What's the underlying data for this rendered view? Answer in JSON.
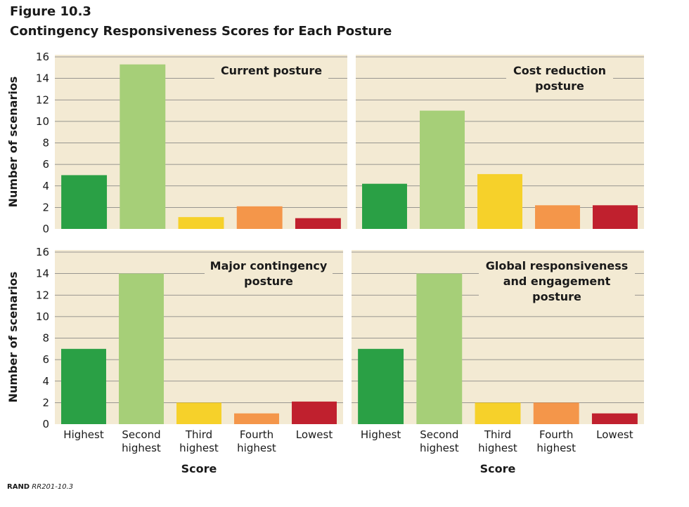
{
  "figure": {
    "label": "Figure 10.3",
    "title": "Contingency Responsiveness Scores for Each Posture",
    "source_org": "RAND",
    "source_id": "RR201-10.3"
  },
  "colors": {
    "panel_bg": "#f3ead3",
    "gridline": "#7a7a7a",
    "Highest": "#2aa045",
    "Second highest": "#a6cf78",
    "Third highest": "#f6d12a",
    "Fourth highest": "#f4964a",
    "Lowest": "#c0202e"
  },
  "chart_data": [
    {
      "type": "bar",
      "title_lines": [
        "Current posture"
      ],
      "categories": [
        "Highest",
        "Second highest",
        "Third highest",
        "Fourth highest",
        "Lowest"
      ],
      "values": [
        5,
        15.3,
        1.1,
        2.1,
        1
      ],
      "ylabel": "Number of scenarios",
      "xlabel": "",
      "ylim": [
        0,
        16
      ],
      "yticks": [
        0,
        2,
        4,
        6,
        8,
        10,
        12,
        14,
        16
      ],
      "grid": true
    },
    {
      "type": "bar",
      "title_lines": [
        "Cost reduction",
        "posture"
      ],
      "categories": [
        "Highest",
        "Second highest",
        "Third highest",
        "Fourth highest",
        "Lowest"
      ],
      "values": [
        4.2,
        11,
        5.1,
        2.2,
        2.2
      ],
      "ylabel": "",
      "xlabel": "",
      "ylim": [
        0,
        16
      ],
      "grid": true
    },
    {
      "type": "bar",
      "title_lines": [
        "Major contingency",
        "posture"
      ],
      "categories": [
        "Highest",
        "Second highest",
        "Third highest",
        "Fourth highest",
        "Lowest"
      ],
      "values": [
        7,
        14,
        2,
        1,
        2.1
      ],
      "ylabel": "Number of scenarios",
      "xlabel": "Score",
      "x_tick_labels": [
        [
          "Highest"
        ],
        [
          "Second",
          "highest"
        ],
        [
          "Third",
          "highest"
        ],
        [
          "Fourth",
          "highest"
        ],
        [
          "Lowest"
        ]
      ],
      "ylim": [
        0,
        16
      ],
      "yticks": [
        0,
        2,
        4,
        6,
        8,
        10,
        12,
        14,
        16
      ],
      "grid": true
    },
    {
      "type": "bar",
      "title_lines": [
        "Global responsiveness",
        "and engagement",
        "posture"
      ],
      "categories": [
        "Highest",
        "Second highest",
        "Third highest",
        "Fourth highest",
        "Lowest"
      ],
      "values": [
        7,
        14,
        2,
        2,
        1
      ],
      "ylabel": "",
      "xlabel": "Score",
      "x_tick_labels": [
        [
          "Highest"
        ],
        [
          "Second",
          "highest"
        ],
        [
          "Third",
          "highest"
        ],
        [
          "Fourth",
          "highest"
        ],
        [
          "Lowest"
        ]
      ],
      "ylim": [
        0,
        16
      ],
      "grid": true
    }
  ]
}
